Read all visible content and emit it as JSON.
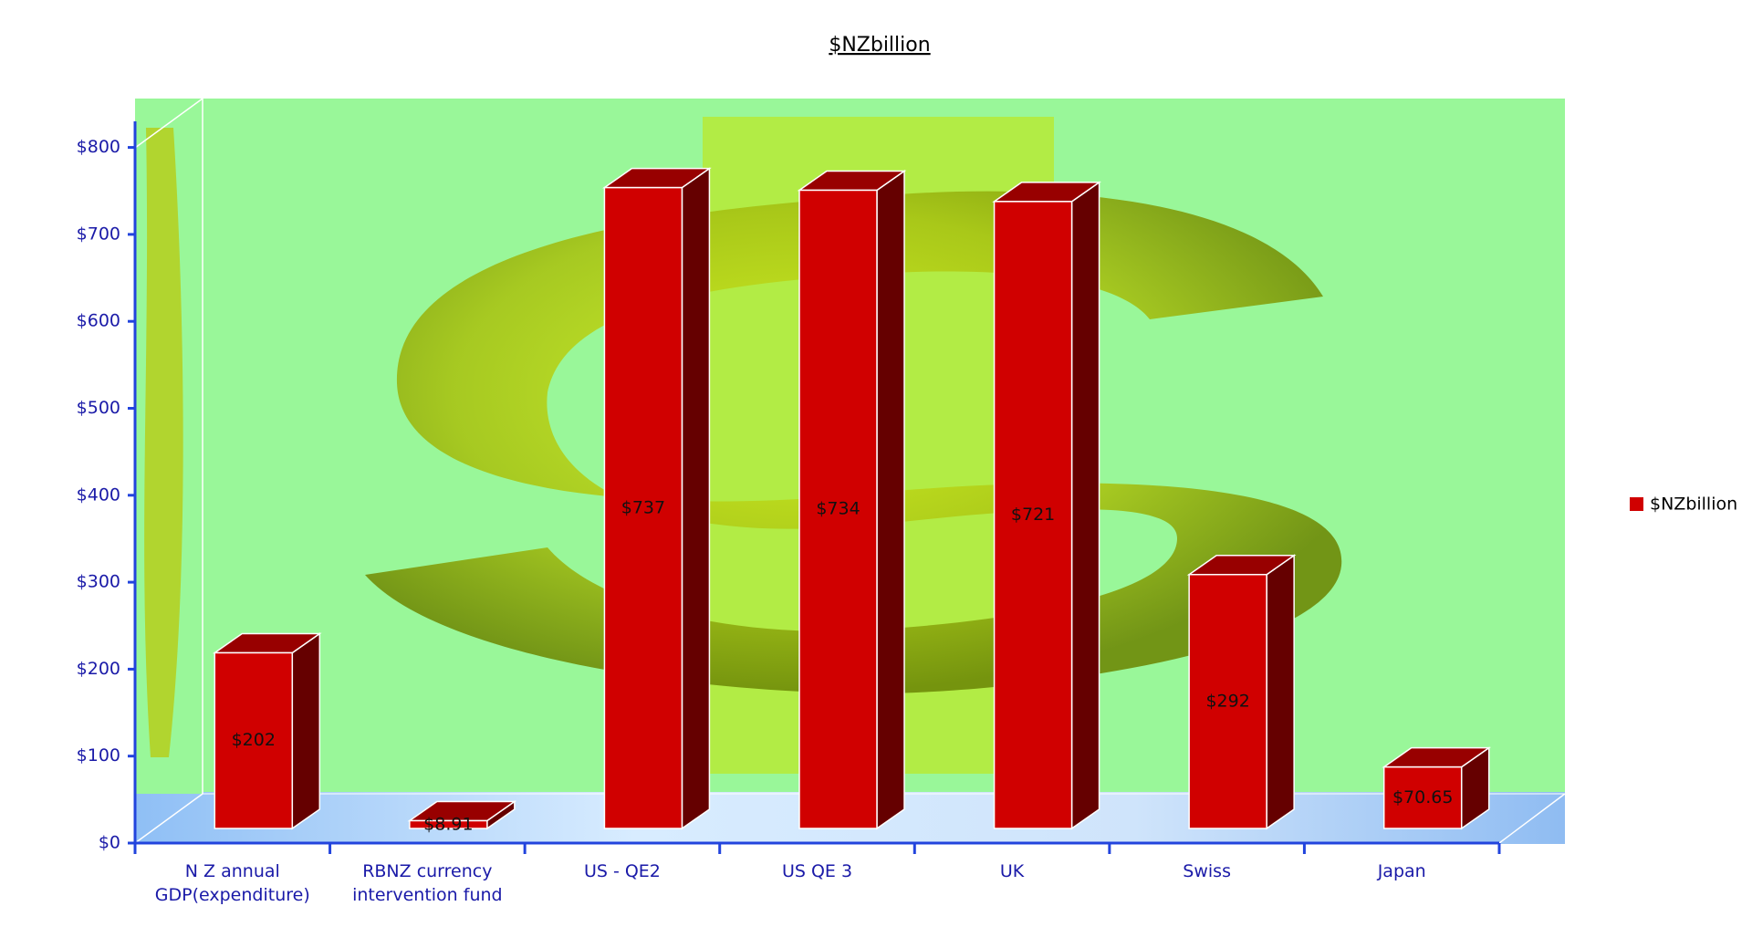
{
  "chart_data": {
    "type": "bar3d",
    "title": "$NZbillion",
    "categories": [
      "N Z  annual GDP(expenditure)",
      "RBNZ currency intervention fund",
      "US - QE2",
      "US QE 3",
      "UK",
      "Swiss",
      "Japan"
    ],
    "series": [
      {
        "name": "$NZbillion",
        "color": "#d00000",
        "values": [
          202,
          8.91,
          737,
          734,
          721,
          292,
          70.65
        ],
        "value_labels": [
          "$202",
          "$8.91",
          "$737",
          "$734",
          "$721",
          "$292",
          "$70.65"
        ]
      }
    ],
    "ylim": [
      0,
      830
    ],
    "yticks": [
      {
        "value": 0,
        "label": "$0"
      },
      {
        "value": 100,
        "label": "$100"
      },
      {
        "value": 200,
        "label": "$200"
      },
      {
        "value": 300,
        "label": "$300"
      },
      {
        "value": 400,
        "label": "$400"
      },
      {
        "value": 500,
        "label": "$500"
      },
      {
        "value": 600,
        "label": "$600"
      },
      {
        "value": 700,
        "label": "$700"
      },
      {
        "value": 800,
        "label": "$800"
      }
    ],
    "legend": "right"
  }
}
